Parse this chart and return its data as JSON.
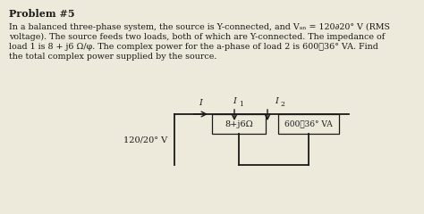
{
  "title": "Problem #5",
  "body_line1": "In a balanced three-phase system, the source is Y-connected, and V",
  "body_line1b": "an",
  "body_line1c": " = 120∂20° V (RMS",
  "body_line2": "voltage). The source feeds two loads, both of which are Y-connected. The impedance of",
  "body_line3": "load 1 is 8 + j6 Ω/φ. The complex power for the a-phase of load 2 is 600∢36° VA. Find",
  "body_line4": "the total complex power supplied by the source.",
  "background_color": "#ede9db",
  "text_color": "#1a1a1a",
  "voltage_label": "120/20° V",
  "current_label": "I",
  "I1_label": "I",
  "I1_sub": "1",
  "I2_label": "I",
  "I2_sub": "2",
  "load1_label": "8+j6Ω",
  "load2_label": "600∢36° VA",
  "title_fontsize": 8.0,
  "body_fontsize": 6.8,
  "circuit_fontsize": 7.0
}
